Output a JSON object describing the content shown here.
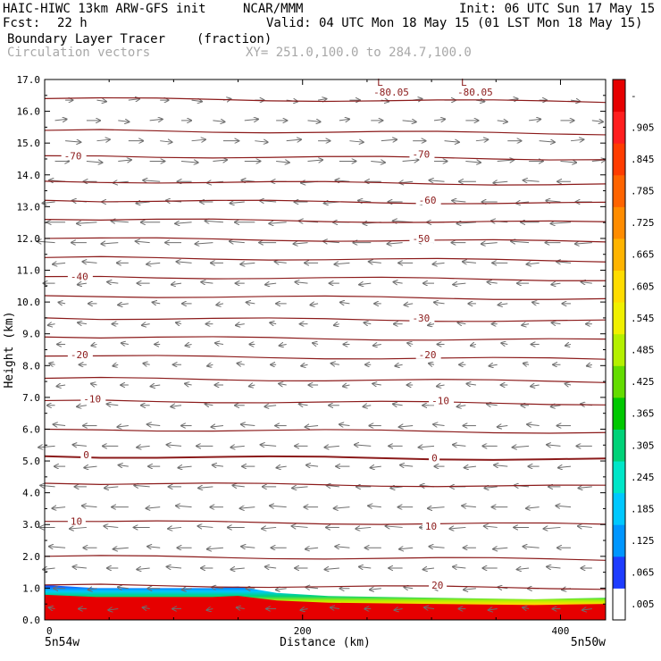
{
  "header": {
    "model": "HAIC-HIWC 13km ARW-GFS init",
    "org": "NCAR/MMM",
    "init": "Init: 06 UTC Sun 17 May 15",
    "fcst_label": "Fcst:",
    "fcst_value": "22 h",
    "valid": "Valid: 04 UTC Mon 18 May 15 (01 LST Mon 18 May 15)",
    "field": "Boundary Layer Tracer",
    "units": "(fraction)",
    "vectors": "Circulation vectors",
    "xy": "XY= 251.0,100.0 to 284.7,100.0"
  },
  "colors": {
    "contour": "#8b1a1a",
    "vector": "#6e6e6e",
    "colorbar": [
      "#ffffff",
      "#1e3cff",
      "#0096ff",
      "#00c8ff",
      "#00e6c8",
      "#00d278",
      "#00c800",
      "#64dc00",
      "#b4f000",
      "#f0f000",
      "#ffdc00",
      "#ffb400",
      "#ff8c00",
      "#ff6400",
      "#ff3c00",
      "#ff1e1e",
      "#e60000"
    ]
  },
  "chart_data": {
    "type": "heatmap",
    "xlabel": "Distance (km)",
    "ylabel": "Height (km)",
    "xlim": [
      0,
      435
    ],
    "ylim": [
      0,
      17
    ],
    "x_ticks": [
      "0",
      "200",
      "400"
    ],
    "x_end_labels": {
      "left": "5n54w",
      "right": "5n50w"
    },
    "y_ticks": [
      "0.0",
      "1.0",
      "2.0",
      "3.0",
      "4.0",
      "5.0",
      "6.0",
      "7.0",
      "8.0",
      "9.0",
      "10.0",
      "11.0",
      "12.0",
      "13.0",
      "14.0",
      "15.0",
      "16.0",
      "17.0"
    ],
    "colorbar_ticks": [
      ".005",
      ".065",
      ".125",
      ".185",
      ".245",
      ".305",
      ".365",
      ".425",
      ".485",
      ".545",
      ".605",
      ".665",
      ".725",
      ".785",
      ".845",
      ".905",
      "-"
    ],
    "contour_labels": [
      {
        "text": "-80.05",
        "x": 255,
        "y": 16.6,
        "L": "L"
      },
      {
        "text": "-80.05",
        "x": 320,
        "y": 16.6,
        "L": "L"
      },
      {
        "text": "-70",
        "x": 15,
        "y": 14.6
      },
      {
        "text": "-70",
        "x": 285,
        "y": 14.65
      },
      {
        "text": "-60",
        "x": 290,
        "y": 13.2
      },
      {
        "text": "-50",
        "x": 285,
        "y": 12.0
      },
      {
        "text": "-40",
        "x": 20,
        "y": 10.8
      },
      {
        "text": "-30",
        "x": 285,
        "y": 9.5
      },
      {
        "text": "-20",
        "x": 20,
        "y": 8.35
      },
      {
        "text": "-20",
        "x": 290,
        "y": 8.35
      },
      {
        "text": "-10",
        "x": 30,
        "y": 6.95
      },
      {
        "text": "-10",
        "x": 300,
        "y": 6.9
      },
      {
        "text": "0",
        "x": 30,
        "y": 5.2
      },
      {
        "text": "0",
        "x": 300,
        "y": 5.1
      },
      {
        "text": "10",
        "x": 20,
        "y": 3.1
      },
      {
        "text": "10",
        "x": 295,
        "y": 2.95
      },
      {
        "text": "20",
        "x": 300,
        "y": 1.1
      }
    ],
    "bl_top_km": [
      [
        0,
        1.1
      ],
      [
        40,
        1.0
      ],
      [
        130,
        1.0
      ],
      [
        150,
        1.05
      ],
      [
        180,
        0.85
      ],
      [
        220,
        0.75
      ],
      [
        300,
        0.7
      ],
      [
        380,
        0.65
      ],
      [
        435,
        0.7
      ]
    ]
  }
}
